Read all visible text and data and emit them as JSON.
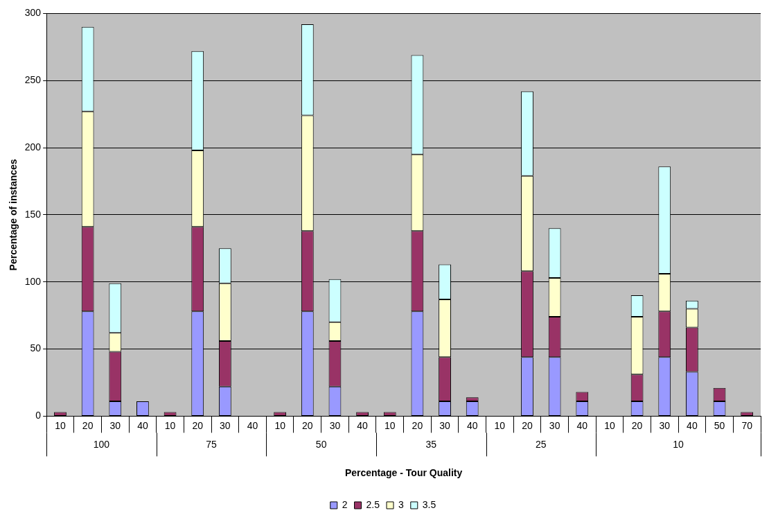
{
  "chart_data": {
    "type": "bar",
    "stacked": true,
    "xlabel": "Percentage - Tour Quality",
    "ylabel": "Percentage of instances",
    "categories": [
      "10",
      "20",
      "30",
      "40",
      "10",
      "20",
      "30",
      "40",
      "10",
      "20",
      "30",
      "40",
      "10",
      "20",
      "30",
      "40",
      "10",
      "20",
      "30",
      "40",
      "10",
      "20",
      "30",
      "40",
      "50",
      "70"
    ],
    "annotations": [
      "100",
      "75",
      "50",
      "35",
      "25",
      "10"
    ],
    "series": [
      {
        "name": "2",
        "color": "#9999ff",
        "values": [
          null,
          78,
          11,
          11,
          null,
          78,
          22,
          null,
          null,
          78,
          22,
          null,
          null,
          78,
          11,
          11,
          null,
          44,
          44,
          11,
          null,
          11,
          44,
          33,
          11,
          null
        ]
      },
      {
        "name": "2.5",
        "color": "#993366",
        "values": [
          3,
          63,
          37,
          null,
          3,
          63,
          34,
          null,
          3,
          60,
          34,
          3,
          3,
          60,
          33,
          3,
          null,
          64,
          30,
          7,
          null,
          20,
          34,
          33,
          10,
          3
        ]
      },
      {
        "name": "3",
        "color": "#ffffcc",
        "values": [
          null,
          86,
          14,
          null,
          null,
          57,
          43,
          null,
          null,
          86,
          14,
          null,
          null,
          57,
          43,
          null,
          null,
          71,
          29,
          null,
          null,
          43,
          28,
          14,
          null,
          null
        ]
      },
      {
        "name": "3.5",
        "color": "#ccffff",
        "values": [
          null,
          63,
          37,
          null,
          null,
          74,
          26,
          null,
          null,
          68,
          32,
          null,
          null,
          74,
          26,
          null,
          null,
          63,
          37,
          null,
          null,
          16,
          80,
          6,
          null,
          null
        ]
      }
    ],
    "ylim": [
      0,
      300
    ],
    "yticks": [
      0,
      50,
      100,
      150,
      200,
      250,
      300
    ],
    "grid": "y",
    "legend": "bottom"
  }
}
